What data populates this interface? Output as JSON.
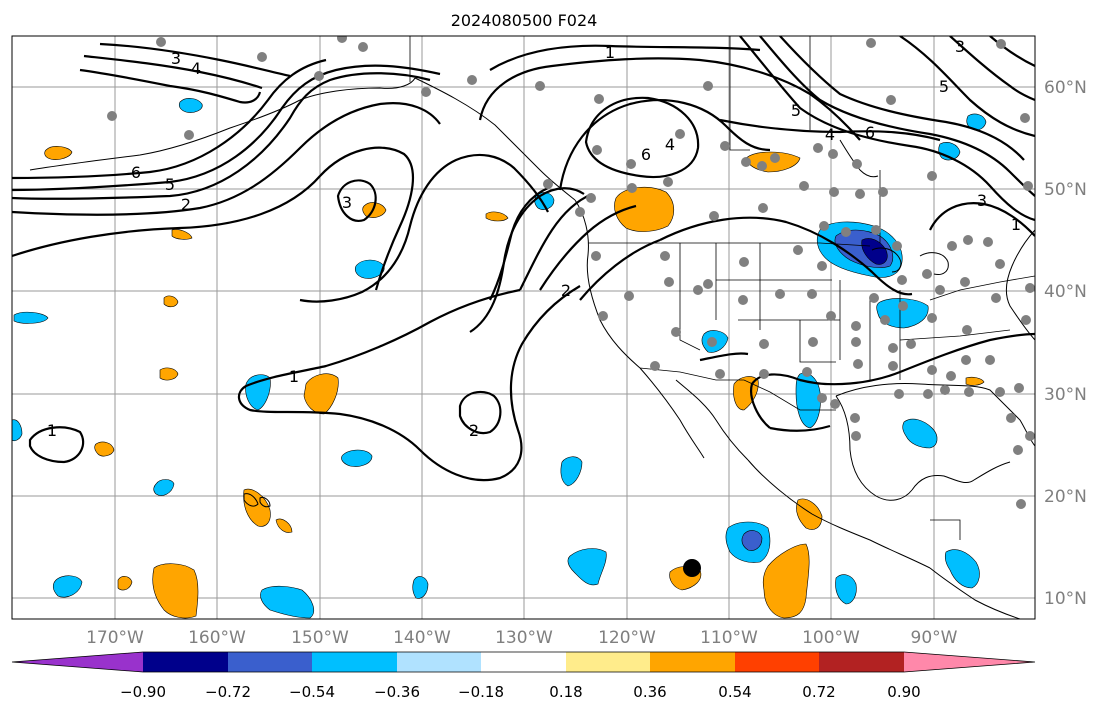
{
  "title": "2024080500 F024",
  "map": {
    "lon_ticks": [
      "170°W",
      "160°W",
      "150°W",
      "140°W",
      "130°W",
      "120°W",
      "110°W",
      "100°W",
      "90°W"
    ],
    "lat_ticks": [
      "60°N",
      "50°N",
      "40°N",
      "30°N",
      "20°N",
      "10°N"
    ],
    "contour_labels": [
      "1",
      "2",
      "3",
      "4",
      "5",
      "6",
      "1",
      "2",
      "3",
      "4",
      "5",
      "6",
      "1",
      "2",
      "2",
      "1",
      "6",
      "5",
      "4",
      "3",
      "2",
      "1"
    ],
    "marker_color": "#808080"
  },
  "colorbar": {
    "ticks": [
      "−0.90",
      "−0.72",
      "−0.54",
      "−0.36",
      "−0.18",
      "0.18",
      "0.36",
      "0.54",
      "0.72",
      "0.90"
    ],
    "colors": [
      "#9932cc",
      "#00008b",
      "#3a5fcd",
      "#00bfff",
      "#b0e2ff",
      "#ffffff",
      "#ffec8b",
      "#ffa500",
      "#ff4000",
      "#b22222",
      "#ff88aa"
    ]
  },
  "chart_data": {
    "type": "heatmap",
    "title": "2024080500 F024",
    "lon_range": [
      -180,
      -80
    ],
    "lat_range": [
      8,
      65
    ],
    "contour_levels": [
      1,
      2,
      3,
      4,
      5,
      6
    ],
    "colorbar_bounds": [
      -0.9,
      -0.72,
      -0.54,
      -0.36,
      -0.18,
      0.18,
      0.36,
      0.54,
      0.72,
      0.9
    ],
    "grid": true
  }
}
